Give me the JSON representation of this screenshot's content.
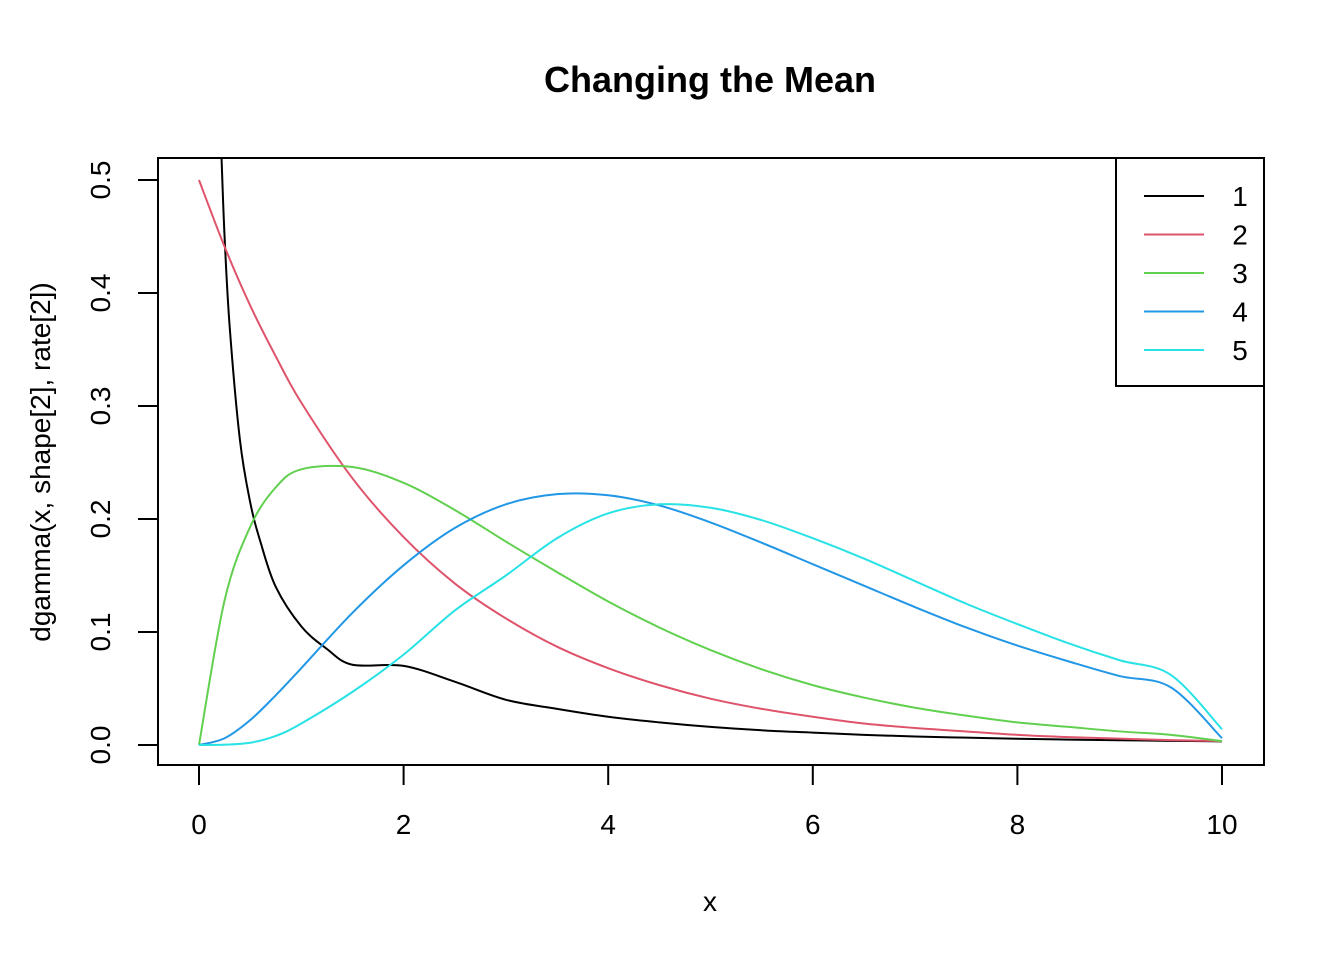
{
  "chart_data": {
    "type": "line",
    "title": "Changing the Mean",
    "xlabel": "x",
    "ylabel": "dgamma(x, shape[2], rate[2])",
    "xlim": [
      0,
      10
    ],
    "ylim": [
      0,
      0.5
    ],
    "x_ticks": [
      "0",
      "2",
      "4",
      "6",
      "8",
      "10"
    ],
    "y_ticks": [
      "0.0",
      "0.1",
      "0.2",
      "0.3",
      "0.4",
      "0.5"
    ],
    "grid": false,
    "legend_position": "top-right",
    "x": [
      0,
      0.25,
      0.5,
      0.75,
      1,
      1.5,
      2,
      2.5,
      3,
      3.5,
      4,
      4.5,
      5,
      5.5,
      6,
      6.5,
      7,
      7.5,
      8,
      8.5,
      9,
      9.5,
      10
    ],
    "series": [
      {
        "name": "1",
        "color": "#000000",
        "x": [
          0.22,
          0.25,
          0.3,
          0.4,
          0.5,
          0.6,
          0.75,
          1,
          1.25,
          1.5,
          2,
          2.5,
          3,
          3.5,
          4,
          4.5,
          5,
          5.5,
          6,
          6.5,
          7,
          7.5,
          8,
          8.5,
          9,
          9.5,
          10
        ],
        "values": [
          0.52,
          0.45,
          0.37,
          0.27,
          0.215,
          0.18,
          0.14,
          0.105,
          0.085,
          0.071,
          0.07,
          0.056,
          0.04,
          0.032,
          0.025,
          0.02,
          0.016,
          0.013,
          0.011,
          0.009,
          0.0075,
          0.0065,
          0.0055,
          0.0048,
          0.0042,
          0.0037,
          0.0032
        ]
      },
      {
        "name": "2",
        "color": "#df536b",
        "values": [
          0.5,
          0.441,
          0.389,
          0.344,
          0.303,
          0.236,
          0.184,
          0.143,
          0.112,
          0.087,
          0.068,
          0.053,
          0.041,
          0.032,
          0.025,
          0.019,
          0.015,
          0.012,
          0.009,
          0.007,
          0.0056,
          0.0043,
          0.0034
        ]
      },
      {
        "name": "3",
        "color": "#61d04f",
        "values": [
          0,
          0.128,
          0.193,
          0.228,
          0.244,
          0.246,
          0.232,
          0.208,
          0.18,
          0.153,
          0.127,
          0.104,
          0.084,
          0.067,
          0.053,
          0.042,
          0.033,
          0.026,
          0.02,
          0.016,
          0.012,
          0.009,
          0.0034
        ]
      },
      {
        "name": "4",
        "color": "#2297e6",
        "values": [
          0,
          0.006,
          0.022,
          0.044,
          0.068,
          0.117,
          0.159,
          0.192,
          0.213,
          0.222,
          0.221,
          0.212,
          0.197,
          0.179,
          0.16,
          0.141,
          0.122,
          0.104,
          0.088,
          0.074,
          0.061,
          0.051,
          0.006
        ]
      },
      {
        "name": "5",
        "color": "#28e2e5",
        "values": [
          0,
          0.0003,
          0.002,
          0.008,
          0.019,
          0.047,
          0.08,
          0.119,
          0.15,
          0.183,
          0.205,
          0.213,
          0.21,
          0.199,
          0.183,
          0.165,
          0.145,
          0.125,
          0.107,
          0.09,
          0.075,
          0.062,
          0.014
        ]
      }
    ]
  }
}
